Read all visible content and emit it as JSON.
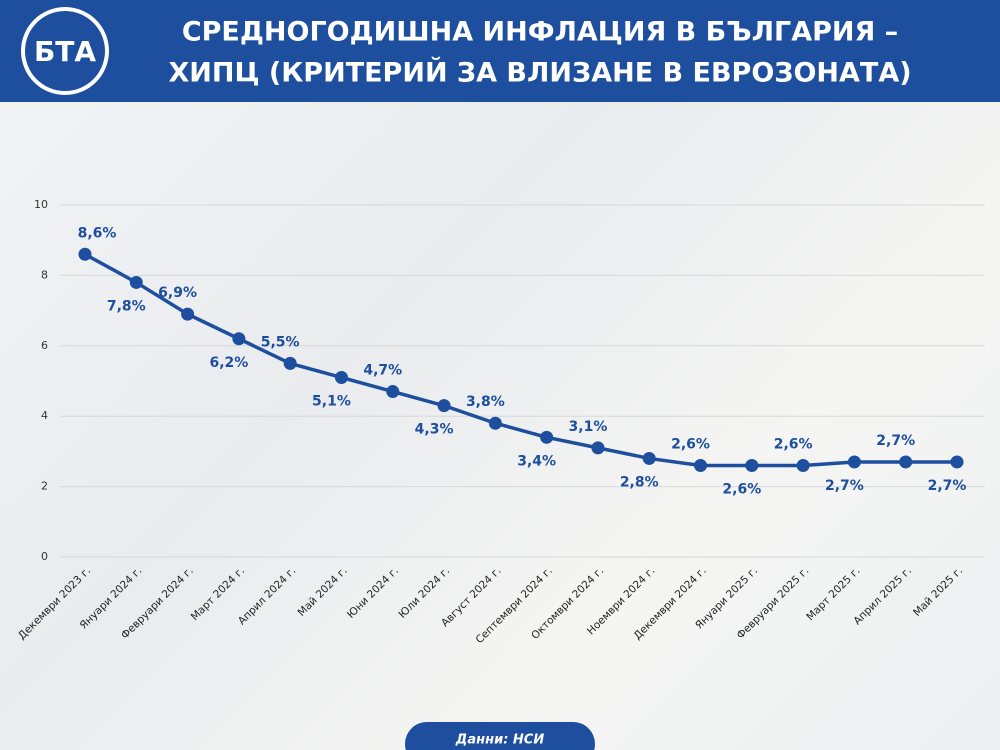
{
  "chart_data": {
    "type": "line",
    "title": [
      "СРЕДНОГОДИШНА ИНФЛАЦИЯ В БЪЛГАРИЯ –",
      "ХИПЦ (КРИТЕРИЙ ЗА ВЛИЗАНЕ В ЕВРОЗОНАТА)"
    ],
    "logo": "БТА",
    "source": "Данни: НСИ",
    "categories": [
      "Декември 2023 г.",
      "Януари 2024 г.",
      "Февруари 2024 г.",
      "Март 2024 г.",
      "Април 2024 г.",
      "Май 2024 г.",
      "Юни 2024 г.",
      "Юли 2024 г.",
      "Август 2024 г.",
      "Септември 2024 г.",
      "Октомври 2024 г.",
      "Ноември 2024 г.",
      "Декември 2024 г.",
      "Януари 2025 г.",
      "Февруари 2025 г.",
      "Март 2025 г.",
      "Април 2025 г.",
      "Май 2025 г."
    ],
    "values": [
      8.6,
      7.8,
      6.9,
      6.2,
      5.5,
      5.1,
      4.7,
      4.3,
      3.8,
      3.4,
      3.1,
      2.8,
      2.6,
      2.6,
      2.6,
      2.7,
      2.7,
      2.7
    ],
    "value_labels": [
      "8,6%",
      "7,8%",
      "6,9%",
      "6,2%",
      "5,5%",
      "5,1%",
      "4,7%",
      "4,3%",
      "3,8%",
      "3,4%",
      "3,1%",
      "2,8%",
      "2,6%",
      "2,6%",
      "2,6%",
      "2,7%",
      "2,7%",
      "2,7%"
    ],
    "color": "#1d4f9e",
    "ylim": [
      0,
      10
    ],
    "yticks": [
      0,
      2,
      4,
      6,
      8,
      10
    ],
    "grid": true
  }
}
